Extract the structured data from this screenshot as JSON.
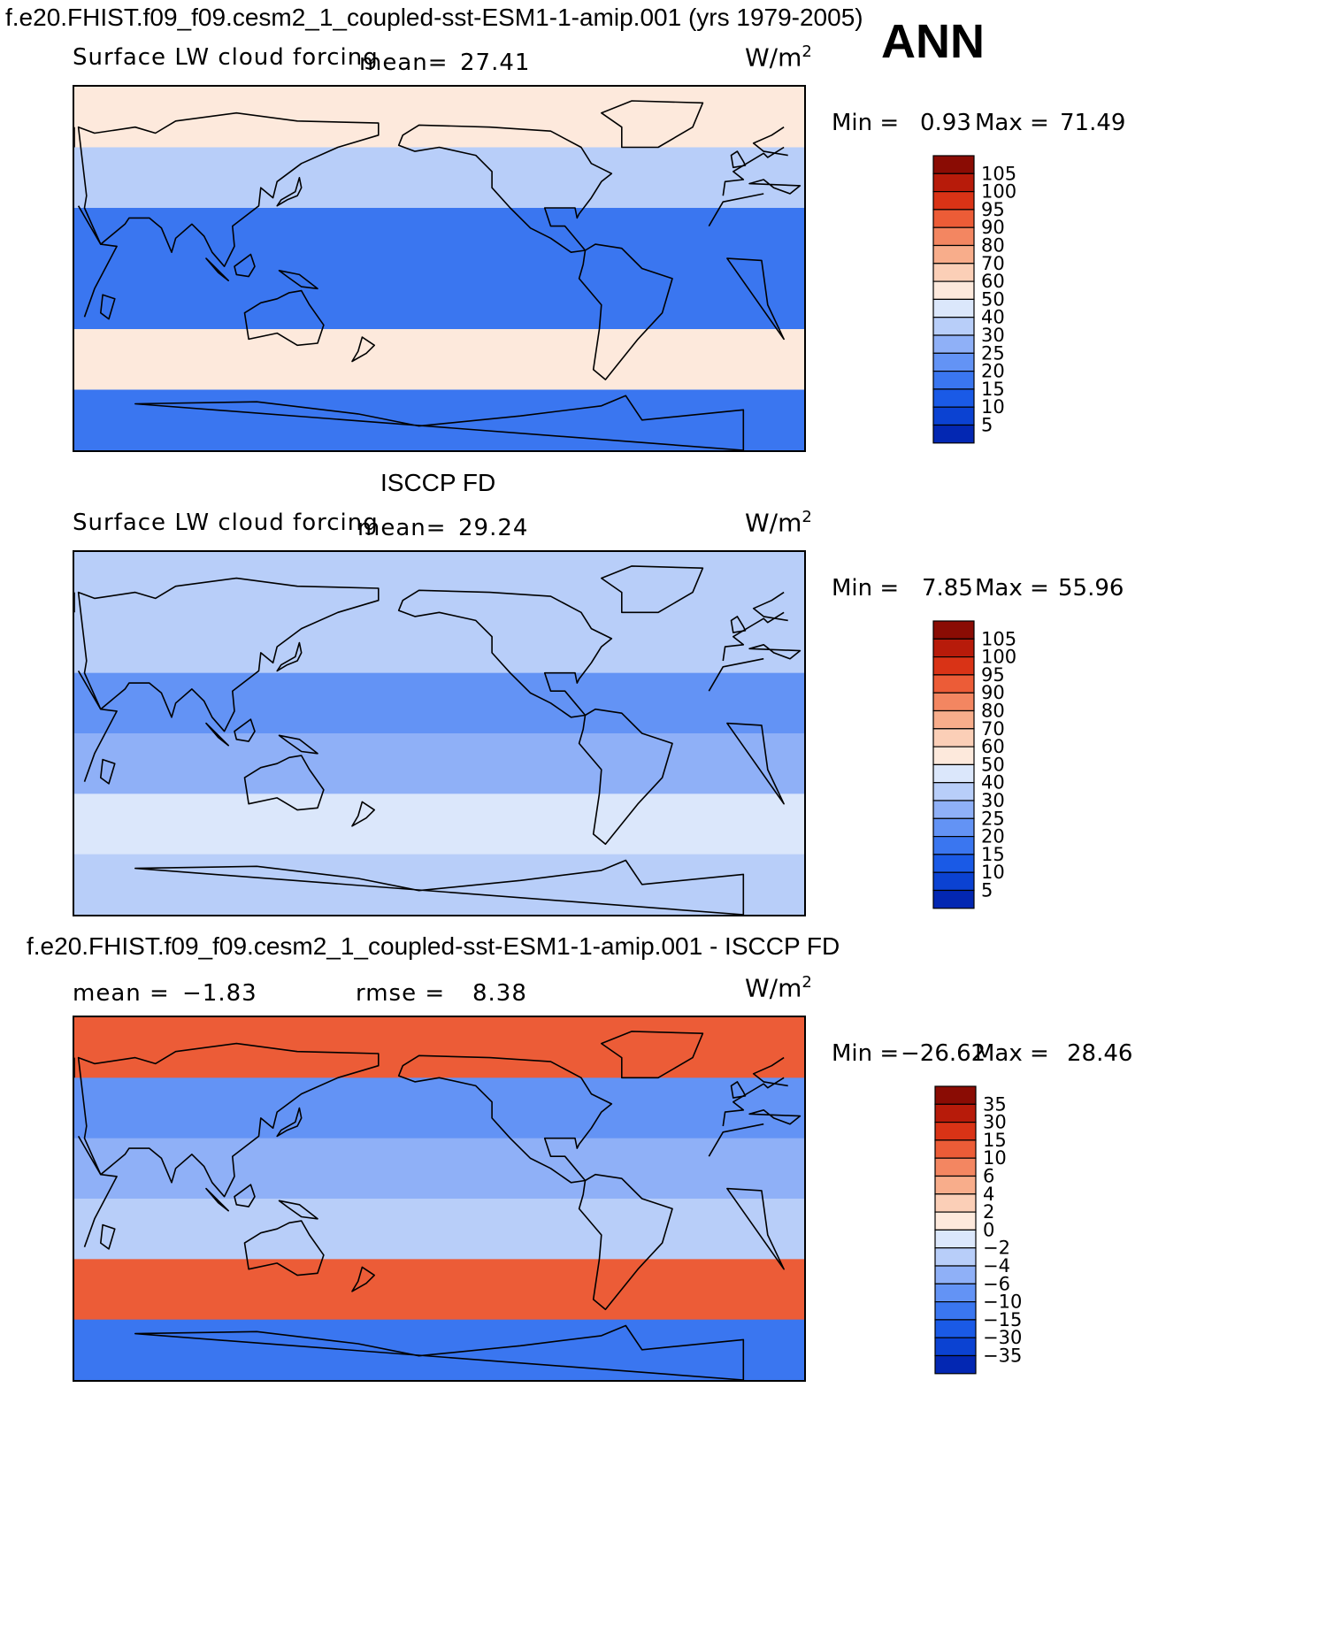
{
  "header": {
    "title": "f.e20.FHIST.f09_f09.cesm2_1_coupled-sst-ESM1-1-amip.001 (yrs 1979-2005)",
    "season": "ANN"
  },
  "colors": {
    "sequential": [
      "#00127f",
      "#0327b2",
      "#0b42d2",
      "#1a5ae6",
      "#3a76f0",
      "#6393f5",
      "#8fb0f7",
      "#b8cef9",
      "#dbe7fb",
      "#fde9dc",
      "#fbcfb7",
      "#f8ad8b",
      "#f38661",
      "#ec5c37",
      "#d93316",
      "#b71b0a",
      "#8a0c04"
    ],
    "diff": [
      "#00127f",
      "#0327b2",
      "#0b42d2",
      "#1a5ae6",
      "#3a76f0",
      "#6393f5",
      "#8fb0f7",
      "#b8cef9",
      "#dbe7fb",
      "#fde9dc",
      "#fbcfb7",
      "#f8ad8b",
      "#f38661",
      "#ec5c37",
      "#d93316",
      "#b71b0a",
      "#8a0c04"
    ]
  },
  "panels": [
    {
      "id": "model",
      "variable": "Surface LW cloud forcing",
      "mean_label": "mean=",
      "mean_value": "27.41",
      "units": "W/m",
      "units_exp": "2",
      "min_label": "Min =",
      "min_value": "0.93",
      "max_label": "Max =",
      "max_value": "71.49",
      "colorbar_levels": [
        "105",
        "100",
        "95",
        "90",
        "80",
        "70",
        "60",
        "50",
        "40",
        "30",
        "25",
        "20",
        "15",
        "10",
        "5"
      ]
    },
    {
      "id": "obs",
      "caption": "ISCCP FD",
      "variable": "Surface LW cloud forcing",
      "mean_label": "mean=",
      "mean_value": "29.24",
      "units": "W/m",
      "units_exp": "2",
      "min_label": "Min =",
      "min_value": "7.85",
      "max_label": "Max =",
      "max_value": "55.96",
      "colorbar_levels": [
        "105",
        "100",
        "95",
        "90",
        "80",
        "70",
        "60",
        "50",
        "40",
        "30",
        "25",
        "20",
        "15",
        "10",
        "5"
      ]
    },
    {
      "id": "diff",
      "caption": "f.e20.FHIST.f09_f09.cesm2_1_coupled-sst-ESM1-1-amip.001 - ISCCP FD",
      "mean_label": "mean =",
      "mean_value": "−1.83",
      "rmse_label": "rmse =",
      "rmse_value": "8.38",
      "units": "W/m",
      "units_exp": "2",
      "min_label": "Min =",
      "min_value": "−26.62",
      "max_label": "Max =",
      "max_value": "28.46",
      "colorbar_levels": [
        "35",
        "30",
        "15",
        "10",
        "6",
        "4",
        "2",
        "0",
        "−2",
        "−4",
        "−6",
        "−10",
        "−15",
        "−30",
        "−35"
      ]
    }
  ],
  "chart_data": [
    {
      "type": "heatmap",
      "title": "Surface LW cloud forcing",
      "units": "W/m2",
      "mean": 27.41,
      "min": 0.93,
      "max": 71.49,
      "levels": [
        5,
        10,
        15,
        20,
        25,
        30,
        40,
        50,
        60,
        70,
        80,
        90,
        95,
        100,
        105
      ],
      "zonal_bands": [
        {
          "lat_range": [
            60,
            90
          ],
          "value": 55
        },
        {
          "lat_range": [
            30,
            60
          ],
          "value": 30
        },
        {
          "lat_range": [
            0,
            30
          ],
          "value": 15
        },
        {
          "lat_range": [
            -30,
            0
          ],
          "value": 18
        },
        {
          "lat_range": [
            -60,
            -30
          ],
          "value": 55
        },
        {
          "lat_range": [
            -90,
            -60
          ],
          "value": 15
        }
      ]
    },
    {
      "type": "heatmap",
      "title": "ISCCP FD",
      "units": "W/m2",
      "mean": 29.24,
      "min": 7.85,
      "max": 55.96,
      "levels": [
        5,
        10,
        15,
        20,
        25,
        30,
        40,
        50,
        60,
        70,
        80,
        90,
        95,
        100,
        105
      ],
      "zonal_bands": [
        {
          "lat_range": [
            60,
            90
          ],
          "value": 35
        },
        {
          "lat_range": [
            30,
            60
          ],
          "value": 30
        },
        {
          "lat_range": [
            0,
            30
          ],
          "value": 22
        },
        {
          "lat_range": [
            -30,
            0
          ],
          "value": 25
        },
        {
          "lat_range": [
            -60,
            -30
          ],
          "value": 40
        },
        {
          "lat_range": [
            -90,
            -60
          ],
          "value": 30
        }
      ]
    },
    {
      "type": "heatmap",
      "title": "f.e20.FHIST.f09_f09.cesm2_1_coupled-sst-ESM1-1-amip.001 - ISCCP FD",
      "units": "W/m2",
      "mean": -1.83,
      "rmse": 8.38,
      "min": -26.62,
      "max": 28.46,
      "levels": [
        -35,
        -30,
        -15,
        -10,
        -6,
        -4,
        -2,
        0,
        2,
        4,
        6,
        10,
        15,
        30,
        35
      ],
      "zonal_bands": [
        {
          "lat_range": [
            60,
            90
          ],
          "value": 12
        },
        {
          "lat_range": [
            30,
            60
          ],
          "value": -8
        },
        {
          "lat_range": [
            0,
            30
          ],
          "value": -6
        },
        {
          "lat_range": [
            -30,
            0
          ],
          "value": -4
        },
        {
          "lat_range": [
            -60,
            -30
          ],
          "value": 14
        },
        {
          "lat_range": [
            -90,
            -60
          ],
          "value": -12
        }
      ]
    }
  ]
}
